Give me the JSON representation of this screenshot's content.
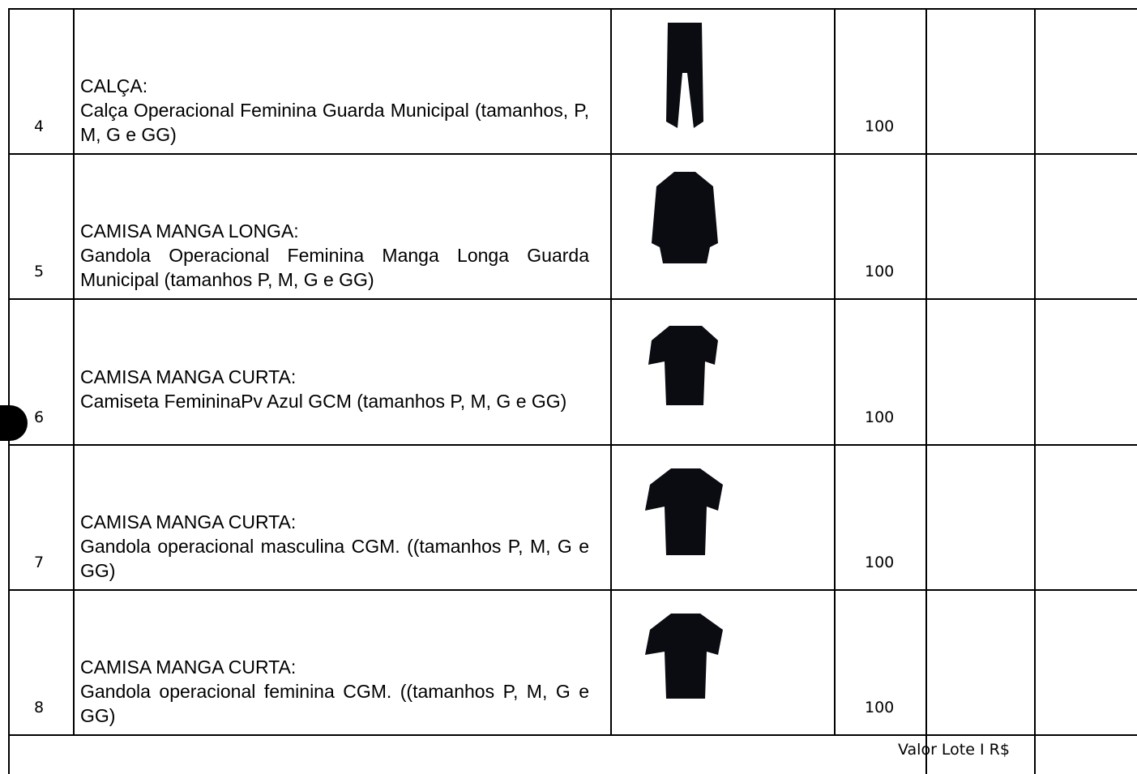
{
  "table": {
    "rows": [
      {
        "item": "4",
        "title": "CALÇA:",
        "description": "Calça Operacional Feminina Guarda Municipal (tamanhos, P, M, G e GG)",
        "quantity": "100"
      },
      {
        "item": "5",
        "title": "CAMISA MANGA LONGA:",
        "description": "Gandola Operacional Feminina Manga Longa Guarda Municipal (tamanhos P, M, G e GG)",
        "quantity": "100"
      },
      {
        "item": "6",
        "title": "CAMISA MANGA CURTA:",
        "description": "Camiseta FemininaPv Azul GCM (tamanhos P, M, G e GG)",
        "quantity": "100"
      },
      {
        "item": "7",
        "title": "CAMISA MANGA CURTA:",
        "description": "Gandola operacional masculina CGM. ((tamanhos P, M, G e GG)",
        "quantity": "100"
      },
      {
        "item": "8",
        "title": "CAMISA MANGA CURTA:",
        "description": "Gandola operacional feminina CGM. ((tamanhos P, M, G e GG)",
        "quantity": "100"
      }
    ],
    "footer": "Valor Lote I R$"
  }
}
